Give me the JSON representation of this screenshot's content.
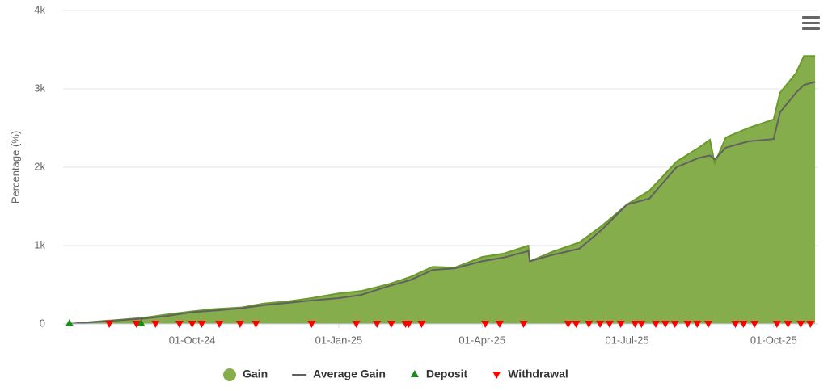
{
  "chart_data": {
    "type": "area",
    "y_axis_label": "Percentage (%)",
    "x": [
      "2024-07-16",
      "2024-08-01",
      "2024-08-15",
      "2024-09-01",
      "2024-09-15",
      "2024-10-01",
      "2024-10-15",
      "2024-11-01",
      "2024-11-15",
      "2024-12-01",
      "2024-12-15",
      "2025-01-01",
      "2025-01-15",
      "2025-02-01",
      "2025-02-15",
      "2025-03-01",
      "2025-03-15",
      "2025-04-01",
      "2025-04-15",
      "2025-04-30",
      "2025-05-01",
      "2025-05-15",
      "2025-06-01",
      "2025-06-15",
      "2025-07-01",
      "2025-07-15",
      "2025-08-01",
      "2025-08-15",
      "2025-08-22",
      "2025-08-25",
      "2025-09-01",
      "2025-09-15",
      "2025-10-01",
      "2025-10-05",
      "2025-10-15",
      "2025-10-20",
      "2025-10-27"
    ],
    "series": [
      {
        "name": "Gain",
        "color": "#86ad4c",
        "line_color": "#6a9a2a",
        "values": [
          0,
          30,
          50,
          80,
          120,
          160,
          190,
          210,
          260,
          290,
          330,
          390,
          420,
          505,
          600,
          730,
          720,
          855,
          900,
          1000,
          800,
          920,
          1040,
          1250,
          1525,
          1700,
          2070,
          2250,
          2350,
          2050,
          2380,
          2500,
          2610,
          2950,
          3200,
          3420,
          3420
        ]
      },
      {
        "name": "Average Gain",
        "color": "#616161",
        "values": [
          0,
          25,
          45,
          70,
          100,
          150,
          170,
          200,
          240,
          270,
          300,
          330,
          370,
          480,
          560,
          690,
          710,
          800,
          850,
          930,
          800,
          880,
          960,
          1200,
          1525,
          1600,
          2000,
          2120,
          2150,
          2100,
          2250,
          2330,
          2360,
          2700,
          2950,
          3050,
          3090
        ]
      }
    ],
    "events": [
      {
        "name": "Deposit",
        "color": "#1a8a1a",
        "dates": [
          "2024-07-16",
          "2024-08-30"
        ]
      },
      {
        "name": "Withdrawal",
        "color": "#ff0000",
        "dates": [
          "2024-08-10",
          "2024-08-27",
          "2024-09-08",
          "2024-09-23",
          "2024-10-01",
          "2024-10-07",
          "2024-10-18",
          "2024-10-31",
          "2024-11-10",
          "2024-12-15",
          "2025-01-12",
          "2025-01-25",
          "2025-02-03",
          "2025-02-12",
          "2025-02-14",
          "2025-02-22",
          "2025-04-03",
          "2025-04-12",
          "2025-04-27",
          "2025-05-25",
          "2025-05-30",
          "2025-06-07",
          "2025-06-14",
          "2025-06-20",
          "2025-06-27",
          "2025-07-06",
          "2025-07-10",
          "2025-07-19",
          "2025-07-25",
          "2025-07-31",
          "2025-08-08",
          "2025-08-14",
          "2025-08-21",
          "2025-09-07",
          "2025-09-12",
          "2025-09-19",
          "2025-10-03",
          "2025-10-10",
          "2025-10-18",
          "2025-10-24"
        ]
      }
    ],
    "xlim": [
      "2024-07-12",
      "2025-10-29"
    ],
    "xticks": [
      {
        "value": "2024-10-01",
        "label": "01-Oct-24"
      },
      {
        "value": "2025-01-01",
        "label": "01-Jan-25"
      },
      {
        "value": "2025-04-01",
        "label": "01-Apr-25"
      },
      {
        "value": "2025-07-01",
        "label": "01-Jul-25"
      },
      {
        "value": "2025-10-01",
        "label": "01-Oct-25"
      }
    ],
    "ylim": [
      0,
      4000
    ],
    "yticks": [
      0,
      {
        "value": 1000,
        "label": "1k"
      },
      {
        "value": 2000,
        "label": "2k"
      },
      {
        "value": 3000,
        "label": "3k"
      },
      {
        "value": 4000,
        "label": "4k"
      }
    ],
    "grid": true
  }
}
